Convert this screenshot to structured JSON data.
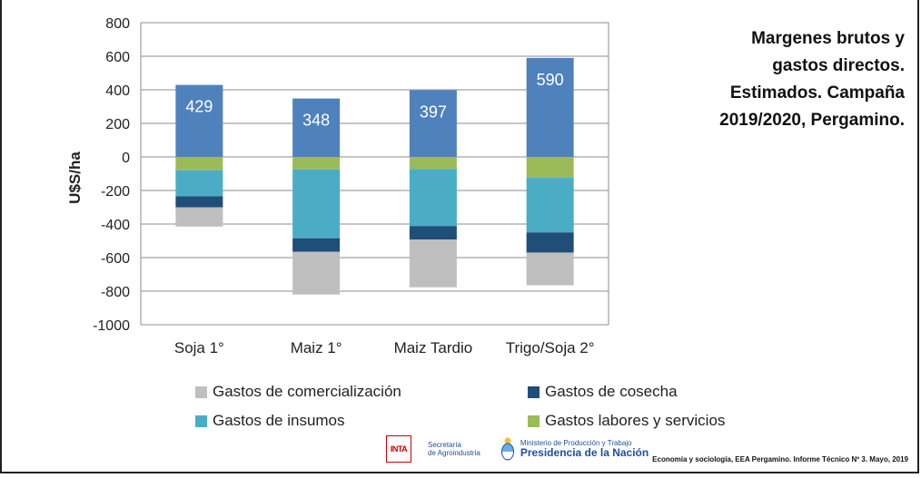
{
  "chart_data": {
    "type": "bar",
    "stacked": true,
    "ylabel": "U$S/ha",
    "ylim": [
      -1000,
      800
    ],
    "yticks": [
      800,
      600,
      400,
      200,
      0,
      -200,
      -400,
      -600,
      -800,
      -1000
    ],
    "categories": [
      "Soja 1°",
      "Maiz 1°",
      "Maiz Tardio",
      "Trigo/Soja 2°"
    ],
    "margin_labels": [
      "429",
      "348",
      "397",
      "590"
    ],
    "margins": [
      429,
      348,
      397,
      590
    ],
    "series": [
      {
        "name": "Gastos labores y servicios",
        "color": "#9bbb59",
        "values": [
          -80,
          -75,
          -72,
          -125
        ]
      },
      {
        "name": "Gastos de insumos",
        "color": "#4bacc6",
        "values": [
          -155,
          -410,
          -340,
          -325
        ]
      },
      {
        "name": "Gastos de cosecha",
        "color": "#1f4e79",
        "values": [
          -65,
          -80,
          -80,
          -120
        ]
      },
      {
        "name": "Gastos de comercialización",
        "color": "#bfbfbf",
        "values": [
          -115,
          -255,
          -285,
          -195
        ]
      }
    ],
    "margin_color": "#4f81bd",
    "grid": true,
    "legend_placement": "bottom"
  },
  "title_lines": [
    "Margenes brutos y",
    "gastos directos.",
    "Estimados. Campaña",
    "2019/2020, Pergamino."
  ],
  "legend": [
    {
      "label": "Gastos de comercialización",
      "color": "#bfbfbf"
    },
    {
      "label": "Gastos de cosecha",
      "color": "#1f4e79"
    },
    {
      "label": "Gastos de insumos",
      "color": "#4bacc6"
    },
    {
      "label": "Gastos labores y servicios",
      "color": "#9bbb59"
    }
  ],
  "footer": {
    "inta": "INTA",
    "secretaria_line1": "Secretaría",
    "secretaria_line2": "de Agroindustria",
    "ministerio": "Ministerio de Producción y Trabajo",
    "presidencia": "Presidencia de la Nación",
    "source": "Economía y sociología, EEA Pergamino. Informe Técnico Nº 3. Mayo, 2019"
  }
}
